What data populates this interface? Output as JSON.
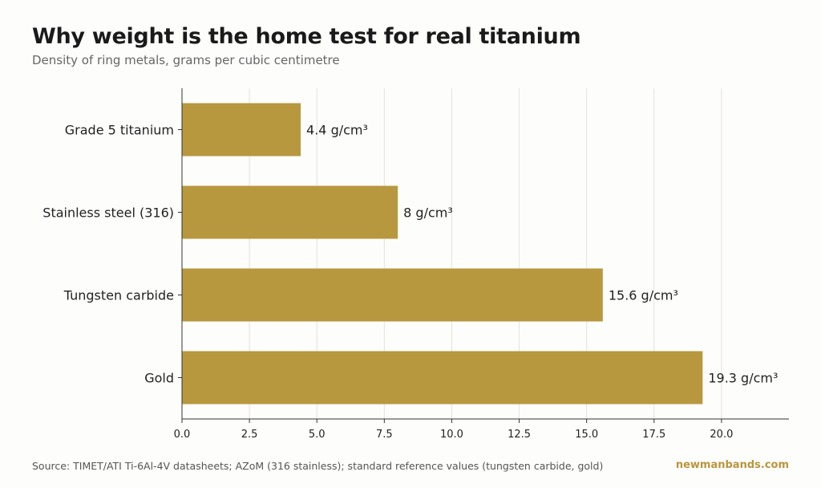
{
  "header": {
    "title": "Why weight is the home test for real titanium",
    "subtitle": "Density of ring metals, grams per cubic centimetre"
  },
  "footer": {
    "source": "Source: TIMET/ATI Ti-6Al-4V datasheets; AZoM (316 stainless); standard reference values (tungsten carbide, gold)",
    "brand": "newmanbands.com"
  },
  "colors": {
    "bar": "#b8983f",
    "grid": "#e4e2da",
    "axis": "#333333",
    "text": "#222222",
    "brand": "#b8963d"
  },
  "chart_data": {
    "type": "bar",
    "orientation": "horizontal",
    "categories": [
      "Grade 5 titanium",
      "Stainless steel (316)",
      "Tungsten carbide",
      "Gold"
    ],
    "values": [
      4.4,
      8,
      15.6,
      19.3
    ],
    "value_labels": [
      "4.4 g/cm³",
      "8 g/cm³",
      "15.6 g/cm³",
      "19.3 g/cm³"
    ],
    "x_ticks": [
      "0.0",
      "2.5",
      "5.0",
      "7.5",
      "10.0",
      "12.5",
      "15.0",
      "17.5",
      "20.0"
    ],
    "xlim": [
      0,
      22.5
    ],
    "grid": true,
    "legend": "none"
  }
}
